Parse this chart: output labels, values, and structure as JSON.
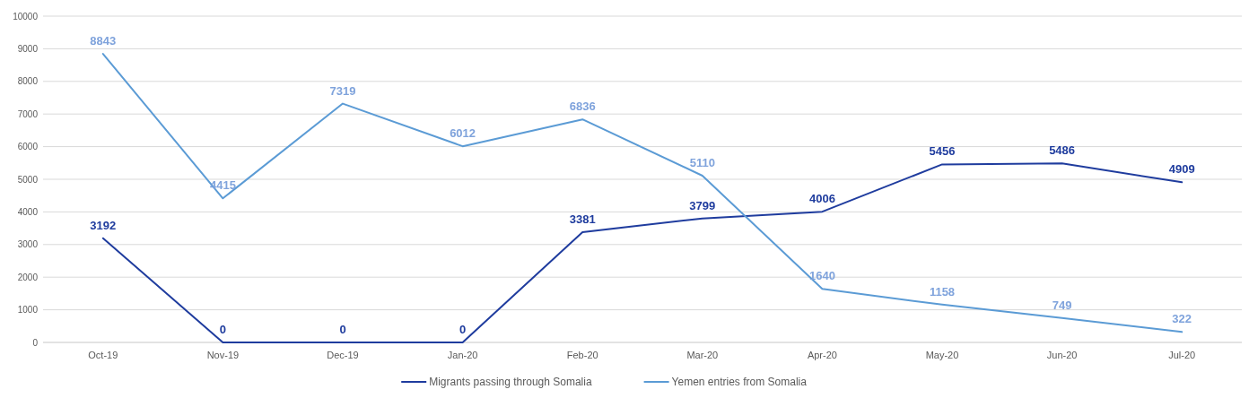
{
  "chart_data": {
    "type": "line",
    "categories": [
      "Oct-19",
      "Nov-19",
      "Dec-19",
      "Jan-20",
      "Feb-20",
      "Mar-20",
      "Apr-20",
      "May-20",
      "Jun-20",
      "Jul-20"
    ],
    "series": [
      {
        "name": "Migrants passing through Somalia",
        "color": "#1f3c9e",
        "values": [
          3192,
          0,
          0,
          0,
          3381,
          3799,
          4006,
          5456,
          5486,
          4909
        ]
      },
      {
        "name": "Yemen entries from Somalia",
        "color": "#5b9bd5",
        "values": [
          8843,
          4415,
          7319,
          6012,
          6836,
          5110,
          1640,
          1158,
          749,
          322
        ]
      }
    ],
    "ylim": [
      0,
      10000
    ],
    "yticks": [
      0,
      1000,
      2000,
      3000,
      4000,
      5000,
      6000,
      7000,
      8000,
      9000,
      10000
    ],
    "grid": "y",
    "legend": "bottom",
    "data_labels": true,
    "marker": "none",
    "line_style": "solid"
  }
}
